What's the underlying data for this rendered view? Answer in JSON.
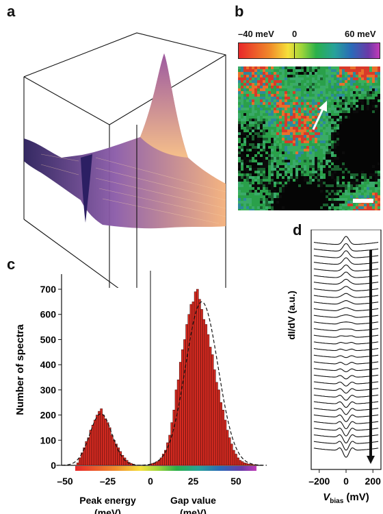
{
  "panels": {
    "a": "a",
    "b": "b",
    "c": "c",
    "d": "d"
  },
  "colorbar": {
    "min_label": "–40 meV",
    "zero_label": "0",
    "max_label": "60 meV"
  },
  "chart_data": [
    {
      "panel": "c",
      "type": "bar",
      "ylabel": "Number of spectra",
      "xlabel_left": [
        "Peak energy",
        "(meV)"
      ],
      "xlabel_right": [
        "Gap value",
        "(meV)"
      ],
      "xticks": [
        -50,
        -25,
        0,
        25,
        50
      ],
      "xtick_labels": [
        "–50",
        "–25",
        "0",
        "25",
        "50"
      ],
      "yticks": [
        0,
        100,
        200,
        300,
        400,
        500,
        600,
        700
      ],
      "xlim": [
        -52,
        66
      ],
      "ylim": [
        0,
        760
      ],
      "bin_width": 1.25,
      "x": [
        -42.5,
        -41.25,
        -40,
        -38.75,
        -37.5,
        -36.25,
        -35,
        -33.75,
        -32.5,
        -31.25,
        -30,
        -28.75,
        -27.5,
        -26.25,
        -25,
        -23.75,
        -22.5,
        -21.25,
        -20,
        -18.75,
        -17.5,
        -16.25,
        -15,
        -13.75,
        -12.5,
        -11.25,
        -10,
        0,
        1.25,
        2.5,
        3.75,
        5,
        6.25,
        7.5,
        8.75,
        10,
        11.25,
        12.5,
        13.75,
        15,
        16.25,
        17.5,
        18.75,
        20,
        21.25,
        22.5,
        23.75,
        25,
        26.25,
        27.5,
        28.75,
        30,
        31.25,
        32.5,
        33.75,
        35,
        36.25,
        37.5,
        38.75,
        40,
        41.25,
        42.5,
        43.75,
        45,
        46.25,
        47.5,
        48.75,
        50,
        51.25,
        52.5,
        53.75,
        55,
        56.25,
        57.5,
        58.75,
        60,
        61.25,
        62.5
      ],
      "values": [
        10,
        30,
        50,
        70,
        95,
        110,
        140,
        160,
        180,
        200,
        215,
        225,
        200,
        185,
        170,
        150,
        120,
        100,
        85,
        70,
        55,
        40,
        30,
        20,
        12,
        8,
        5,
        5,
        8,
        10,
        15,
        20,
        30,
        45,
        60,
        90,
        120,
        170,
        220,
        300,
        340,
        410,
        460,
        500,
        560,
        600,
        640,
        650,
        690,
        700,
        660,
        620,
        580,
        560,
        520,
        470,
        440,
        380,
        330,
        300,
        250,
        220,
        180,
        140,
        110,
        85,
        60,
        45,
        30,
        20,
        15,
        10,
        8,
        5,
        4,
        3,
        2,
        1
      ],
      "fit_curves": [
        {
          "center": -29,
          "sigma": 6.5,
          "amplitude": 205
        },
        {
          "center": 30,
          "sigma": 9.5,
          "amplitude": 650
        }
      ],
      "bar_color": "#d42a20"
    },
    {
      "panel": "d",
      "type": "line",
      "ylabel": "dI/dV (a.u.)",
      "xlabel": "V_bias (mV)",
      "xticks": [
        -200,
        0,
        200
      ],
      "xtick_labels": [
        "–200",
        "0",
        "200"
      ],
      "xlim": [
        -260,
        260
      ],
      "n_spectra": 32
    }
  ],
  "colors": {
    "histogram_bar": "#d42a20",
    "surface_dark": "#3b2a6e",
    "surface_light": "#f5b07a"
  }
}
